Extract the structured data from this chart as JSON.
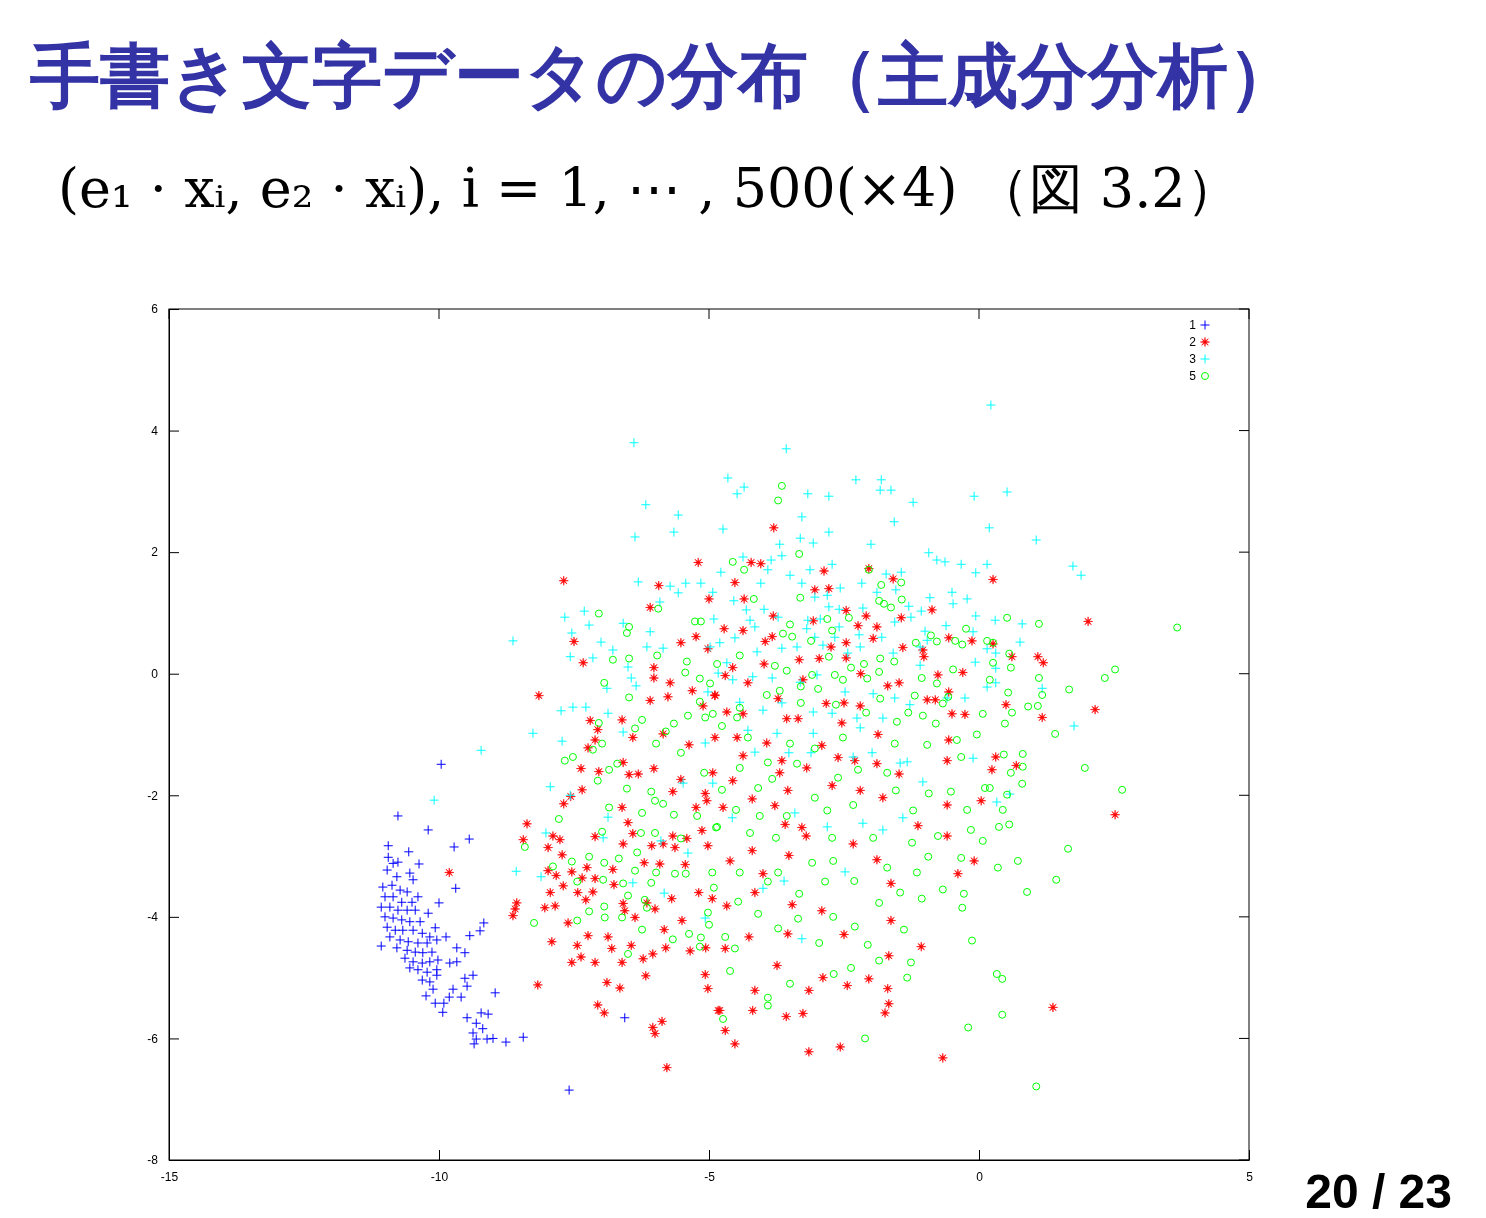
{
  "chart_data": {
    "type": "scatter",
    "title": "手書き文字データの分布（主成分分析）",
    "subtitle": "(e₁ · xᵢ, e₂ · xᵢ),  i = 1, ⋯ , 500(×4)  （図 3.2）",
    "annotations": [
      "20 / 23"
    ],
    "xlim": [
      -15,
      5
    ],
    "ylim": [
      -8,
      6
    ],
    "xticks": [
      -15,
      -10,
      -5,
      0,
      5
    ],
    "yticks": [
      -8,
      -6,
      -4,
      -2,
      0,
      2,
      4,
      6
    ],
    "legend": "top right",
    "series": [
      {
        "name": "1",
        "color": "#0000ff",
        "marker": "cross",
        "x": [
          -9.96,
          -10.76,
          -10.2,
          -9.44,
          -9.72,
          -10.94,
          -10.56,
          -10.37,
          -10.94,
          -10.85,
          -10.76,
          -10.96,
          -10.78,
          -10.54,
          -10.48,
          -11.04,
          -10.87,
          -10.72,
          -10.59,
          -11,
          -10.85,
          -10.69,
          -10.5,
          -10.39,
          -11.07,
          -10.91,
          -10.76,
          -10.59,
          -10.44,
          -11,
          -10.85,
          -10.69,
          -10.54,
          -10.35,
          -10.96,
          -10.81,
          -10.67,
          -10.48,
          -10.31,
          -10.17,
          -10.91,
          -10.72,
          -10.57,
          -10.39,
          -10.22,
          -10.04,
          -10.78,
          -10.59,
          -10.44,
          -10.3,
          -10.13,
          -10.63,
          -10.48,
          -10.31,
          -10.17,
          -10.02,
          -10.54,
          -10.39,
          -10.22,
          -10.04,
          -10.31,
          -10.17,
          -10.04,
          -9.8,
          -9.67,
          -9.69,
          -10,
          -10.2,
          -9.17,
          -9.24,
          -9.43,
          -9.87,
          -11.07,
          -9.67,
          -9.52,
          -10.07,
          -9.37,
          -9.52,
          -9.48,
          -8.96,
          -9.74,
          -9.59,
          -9.81,
          -9.91,
          -10.07,
          -10.24,
          -10.11,
          -9.93,
          -9.48,
          -9.31,
          -9.22,
          -9.09,
          -9.19,
          -9.37,
          -9.31,
          -9.35,
          -9.11,
          -9,
          -8.76,
          -8.44,
          -7.59,
          -6.56
        ],
        "values": [
          -1.49,
          -2.34,
          -2.57,
          -2.72,
          -2.85,
          -2.83,
          -2.93,
          -3.13,
          -3.02,
          -3.12,
          -3.1,
          -3.23,
          -3.34,
          -3.28,
          -3.39,
          -3.51,
          -3.48,
          -3.56,
          -3.59,
          -3.67,
          -3.67,
          -3.76,
          -3.76,
          -3.67,
          -3.84,
          -3.84,
          -3.89,
          -3.89,
          -3.89,
          -4,
          -4.02,
          -4.05,
          -4.08,
          -4.08,
          -4.17,
          -4.22,
          -4.22,
          -4.22,
          -4.27,
          -4.33,
          -4.33,
          -4.38,
          -4.41,
          -4.43,
          -4.43,
          -4.38,
          -4.51,
          -4.55,
          -4.58,
          -4.59,
          -4.58,
          -4.68,
          -4.74,
          -4.76,
          -4.74,
          -4.71,
          -4.84,
          -4.87,
          -4.91,
          -4.87,
          -5.04,
          -5.07,
          -4.96,
          -4.76,
          -4.74,
          -3.53,
          -3.77,
          -3.94,
          -4.1,
          -4.23,
          -4.31,
          -4.33,
          -4.48,
          -4.51,
          -4.59,
          -4.18,
          -4.96,
          -5.01,
          -5.14,
          -5.25,
          -5.19,
          -5.32,
          -5.32,
          -5.42,
          -5.42,
          -5.3,
          -5.19,
          -5.57,
          -5.66,
          -5.75,
          -5.58,
          -5.6,
          -5.84,
          -5.91,
          -6.01,
          -6.09,
          -6.01,
          -6,
          -6.06,
          -5.98,
          -6.85,
          -5.66
        ]
      },
      {
        "name": "2",
        "color": "#ff0000",
        "marker": "star",
        "x": [
          -5.2,
          -7.69,
          -5.93,
          -5,
          -6.09,
          -5.24,
          -7.5,
          -5.52,
          -5.02,
          -7.33,
          -6.02,
          -6.02,
          -5.72,
          -5.31,
          -4.89,
          -5.76,
          -6.09,
          -8.15,
          -5.11,
          -7.2,
          -6.61,
          -7.06,
          -6.41,
          -5.85,
          -7.11,
          -7.24,
          -5.37,
          -4.89,
          -6.59,
          -7.37,
          -7.04,
          -6.48,
          -6.31,
          -6.02,
          -7.35,
          -7.56,
          -7.69,
          -5.67,
          -5.52,
          -6.61,
          -5.24,
          -5.07,
          -8.37,
          -8.44,
          -7.89,
          -7.76,
          -7.98,
          -7.72,
          -7.11,
          -6.5,
          -6.41,
          -6.59,
          -6.2,
          -6.06,
          -5.85,
          -5.63,
          -5.44,
          -5.67,
          -5.41,
          -5.13,
          -5.02,
          -9.81,
          -7.98,
          -7.54,
          -7.26,
          -6.78,
          -5.91,
          -7.83,
          -7.35,
          -7.11,
          -7.7,
          -7.94,
          -7.43,
          -7.15,
          -6.76,
          -8.56,
          -8.59,
          -8.63,
          -8.04,
          -7.85,
          -7.28,
          -6.59,
          -6.56,
          -6.37,
          -6.15,
          -6,
          -5.69,
          -5.5,
          -5.19,
          -4.94,
          -7.61,
          -7.24,
          -6.87,
          -7.91,
          -7.44,
          -7.37,
          -7.54,
          -7.11,
          -6.8,
          -6.44,
          -6.61,
          -6.22,
          -6.04,
          -6.17,
          -5.8,
          -5.35,
          -5.07,
          -5.02,
          -6.89,
          -6.65,
          -8.17,
          -7.06,
          -6.94,
          -5.87,
          -6.04,
          -6,
          -5.78,
          -4.83,
          -5.83,
          -5.06,
          -3.8,
          -4.22,
          -4.04,
          -4.52,
          -4.35,
          -3.81,
          -2.87,
          -3.04,
          -2.78,
          -2.04,
          -1.59,
          0.26,
          -2.46,
          -2.09,
          -1.44,
          -0.87,
          -2.24,
          -1.89,
          -1.96,
          -4.72,
          -4.37,
          -3.83,
          -3.96,
          -3.07,
          -2.46,
          -2.74,
          -1.41,
          -1.04,
          -1.02,
          -0.56,
          -0.13,
          0.26,
          -3.33,
          -2.96,
          -2.46,
          -2.19,
          -1.48,
          -0.76,
          -0.3,
          -0.56,
          -0.96,
          -0.81,
          -0.5,
          -0.26,
          -1.69,
          -2.2,
          -2.5,
          -2.83,
          -2.54,
          -3.26,
          -3.98,
          -4.28,
          -4.56,
          -4.7,
          -4.89,
          -4.67,
          -4.37,
          -3.72,
          -3.56,
          -3.35,
          2.02,
          0.61,
          1.09,
          1.19,
          0.5,
          1.17,
          2.15,
          0.31,
          0.69,
          0.24,
          2.52,
          1.37,
          -4.48,
          -3.93,
          -3.65,
          -3.69,
          -3.54,
          -4.37,
          -4.56,
          -4.93,
          -5.04,
          -4.74,
          -4.2,
          -3.78,
          -3.28,
          -3.2,
          -3.59,
          -3.19,
          -2.91,
          -2.61,
          -2.3,
          -1.87,
          -1.89,
          -2.72,
          -2.2,
          -1.78,
          -1.48,
          -0.59,
          -0.56,
          0.04,
          -0.59,
          -1.13,
          -2.33,
          -0.59,
          -0.09,
          -1.89,
          -3.52,
          -4.2,
          -4.61,
          -4,
          -4.15,
          -4.67,
          -3.46,
          -2.91,
          -1.63,
          -0.39,
          -1.63,
          -2.5,
          -3.54,
          -4.26,
          -4.7,
          -1.07,
          -1.67,
          -3.74,
          -4.15,
          -3.15,
          -2.89,
          -2.44,
          -2.04,
          -1.69,
          -1.67,
          -1.74,
          -4.8,
          -4.19,
          -3.57,
          -3.26,
          -4.7,
          -4.52,
          -3.15,
          -2.57,
          -0.67
        ],
        "values": [
          1.83,
          1.53,
          1.45,
          1.23,
          1.09,
          0.61,
          0.53,
          0.51,
          0.41,
          0.18,
          0.1,
          -0.07,
          -0.15,
          -0.28,
          -0.36,
          -0.38,
          -0.44,
          -0.36,
          -0.53,
          -0.77,
          -0.76,
          -0.92,
          -1.05,
          -0.99,
          -1.09,
          -1.22,
          -1.17,
          -1.05,
          -1.46,
          -1.56,
          -1.61,
          -1.66,
          -1.65,
          -1.56,
          -1.91,
          -2.02,
          -2.14,
          -1.94,
          -1.74,
          -2.2,
          -2.2,
          -1.97,
          -2.47,
          -2.73,
          -2.67,
          -2.73,
          -2.86,
          -2.98,
          -2.68,
          -2.45,
          -2.63,
          -2.8,
          -3.11,
          -2.83,
          -2.8,
          -2.86,
          -3.14,
          -2.67,
          -2.71,
          -2.58,
          -2.83,
          -3.27,
          -3.24,
          -3.26,
          -3.19,
          -3.22,
          -3.13,
          -3.32,
          -3.36,
          -3.37,
          -3.49,
          -3.6,
          -3.6,
          -3.59,
          -3.47,
          -3.77,
          -3.87,
          -3.98,
          -3.85,
          -3.82,
          -3.72,
          -3.78,
          -3.9,
          -4.01,
          -3.77,
          -3.87,
          -3.7,
          -4.06,
          -3.6,
          -3.7,
          -4.1,
          -4.31,
          -4.33,
          -4.41,
          -4.47,
          -4.66,
          -4.75,
          -4.75,
          -4.52,
          -4.47,
          -4.75,
          -4.69,
          -4.61,
          -4.97,
          -4.51,
          -4.56,
          -4.95,
          -5.18,
          -5.08,
          -5.17,
          -5.12,
          -5.45,
          -5.58,
          -5.72,
          -5.82,
          -5.92,
          -6.48,
          -5.54,
          -4.21,
          -4.51,
          2.4,
          1.83,
          1.81,
          1.5,
          1.23,
          0.95,
          1.69,
          1.38,
          1.4,
          1.73,
          1.56,
          1.55,
          1.04,
          0.95,
          0.92,
          1.05,
          0.79,
          0.77,
          0.58,
          0.74,
          0.71,
          0.61,
          0.53,
          0.87,
          0.51,
          0.44,
          0.43,
          0.39,
          0.28,
          0.59,
          0.54,
          0.49,
          0.23,
          0.25,
          0.26,
          0,
          -0.15,
          -0.02,
          0.02,
          -0.3,
          -0.43,
          -0.43,
          -0.66,
          -0.67,
          -0.2,
          -0.53,
          -0.48,
          -0.49,
          -0.81,
          -0.1,
          0.16,
          -0.15,
          0.1,
          -0.03,
          -0.35,
          -0.63,
          -0.66,
          -0.41,
          -0.74,
          -0.74,
          0.86,
          0.28,
          0.28,
          0.18,
          -0.51,
          -0.72,
          -0.59,
          -1.37,
          -1.51,
          -1.58,
          -2.32,
          -5.49,
          -1.05,
          -1.14,
          -1.43,
          -1.63,
          -1.92,
          -1.35,
          -1.76,
          -1.63,
          -2.09,
          -2.2,
          -2.06,
          -2.17,
          -2.53,
          -2.67,
          -2.48,
          -1.55,
          -1.18,
          -1.38,
          -1.43,
          -1,
          -1.48,
          -1.84,
          -1.92,
          -2.04,
          -1.65,
          -1.43,
          -1.09,
          -2.09,
          -2.16,
          -2.5,
          -2.8,
          -2.67,
          -3.08,
          -3.06,
          -2.99,
          -2.91,
          -3.08,
          -3.29,
          -3.6,
          -3.82,
          -3.8,
          -3.9,
          -3.45,
          -3.29,
          -4.06,
          -4.29,
          -4.28,
          -4.33,
          -4.52,
          -4.49,
          -4.64,
          -4.8,
          -5.21,
          -5.21,
          -5,
          -5.13,
          -5.02,
          -5.18,
          -5.43,
          -5.58,
          -5.54,
          -5.54,
          -5.64,
          -5.59,
          -5.87,
          -6.09,
          -6.22,
          -6.14,
          -6.32
        ]
      },
      {
        "name": "3",
        "color": "#00ffff",
        "marker": "cross",
        "x": [
          -6.39,
          -6.17,
          -5.57,
          -5.65,
          -6.37,
          -6.31,
          -5.72,
          -5.43,
          -5.15,
          -5.57,
          -5.91,
          -7.67,
          -7.31,
          -7.22,
          -7.54,
          -6.59,
          -6.09,
          -7,
          -8.63,
          -7.57,
          -7.15,
          -6.78,
          -6.15,
          -5.85,
          -6.5,
          -6.44,
          -6.89,
          -6.35,
          -7.74,
          -7.52,
          -7.28,
          -6.87,
          -8.26,
          -7.72,
          -6.59,
          -9.22,
          -10.09,
          -7.94,
          -7.57,
          -6.87,
          -8.02,
          -6.96,
          -8.57,
          -8.11,
          -5.89,
          -5.48,
          -5.39,
          -5.83,
          -5.07,
          -6.41,
          0.22,
          -3.57,
          -4.65,
          -4.35,
          -4.48,
          -2.28,
          -1.81,
          -1.83,
          -1.63,
          -3.17,
          -2.78,
          -1.22,
          -0.09,
          -3.28,
          -4.74,
          -1.57,
          -2.78,
          0.19,
          -3.31,
          -3.69,
          -3.07,
          -2,
          -0.93,
          -3.65,
          -4.37,
          -3.85,
          -0.78,
          -0.63,
          -0.33,
          0.15,
          -4.78,
          -3.91,
          -3.5,
          -3.13,
          -2.72,
          -2.17,
          -1.72,
          -1.44,
          -0.06,
          -4.04,
          -3.28,
          -2.57,
          -1.89,
          -1.54,
          -4.93,
          -0.5,
          -4.54,
          -3.04,
          -2.81,
          -0.91,
          -0.22,
          -0.48,
          -4.31,
          -3.98,
          -2.78,
          -2.59,
          -2.15,
          -1.3,
          -1.07,
          -1.26,
          -0.06,
          0.3,
          -4.91,
          -4.24,
          -3.72,
          -3.17,
          -2.94,
          -2.59,
          -1.56,
          -0.61,
          -1,
          -0.11,
          -4.52,
          -4.15,
          -3.19,
          -3.04,
          -2.67,
          -2.22,
          -1.8,
          -0.96,
          0.15,
          -4.8,
          -3.65,
          -2.89,
          -3.37,
          -2.2,
          -1.59,
          -1.09,
          -0.07,
          0.31,
          -4.98,
          -4.11,
          -2.43,
          0.52,
          1.06,
          1.74,
          1.89,
          0.8,
          0.76,
          0.31,
          0.31,
          1.17,
          1.76,
          0.57,
          0.33,
          -5.07,
          -4.15,
          -3.52,
          -3.11,
          -0.11,
          -1.04,
          -1.41,
          -2.15,
          -1.78,
          -2.81,
          -2.48,
          -3.61,
          -4,
          -3.28,
          -4.28,
          -3.74,
          -3.07,
          -2.2,
          -4.93,
          -4.57,
          -3.41,
          -2.33,
          -1.98,
          -1.46,
          -1.33,
          -4.67,
          -4.83,
          -4.56,
          -4.19,
          -3.83,
          -3.31,
          -3,
          -2.48,
          -1.96,
          -1.56,
          -5.02,
          -4.43,
          -4,
          -3.65,
          -3.07,
          -2.72,
          -2.26,
          -1.78,
          -1.28,
          -0.59,
          -0.26,
          0.15,
          -1.09
        ],
        "values": [
          3.8,
          2.78,
          2.61,
          2.33,
          2.25,
          1.51,
          1.44,
          1.49,
          1.49,
          1.33,
          1.18,
          0.93,
          1.03,
          0.8,
          0.67,
          0.83,
          0.69,
          0.52,
          0.54,
          0.28,
          0.26,
          0.39,
          0.44,
          0.42,
          0.11,
          -0.07,
          -0.24,
          -0.2,
          -0.61,
          -0.55,
          -0.55,
          -0.65,
          -0.98,
          -1.11,
          -0.96,
          -1.26,
          -2.08,
          -1.86,
          -2,
          -2.36,
          -2.62,
          -2.7,
          -3.25,
          -3.34,
          -2.75,
          -1.8,
          -2.95,
          -3.61,
          -4.02,
          -3.44,
          4.42,
          3.7,
          3.22,
          3.07,
          2.96,
          3.19,
          3.19,
          3.02,
          3.02,
          2.96,
          2.92,
          2.82,
          2.92,
          2.58,
          2.38,
          2.5,
          2.33,
          2.4,
          2.23,
          2.13,
          2.15,
          2.13,
          1.99,
          1.94,
          1.92,
          1.87,
          1.87,
          1.84,
          1.8,
          1.8,
          1.67,
          1.71,
          1.62,
          1.71,
          1.8,
          1.49,
          1.64,
          1.67,
          1.66,
          1.49,
          1.49,
          1.41,
          1.34,
          1.38,
          1.34,
          1.34,
          1.2,
          1.26,
          1.29,
          1.25,
          1.23,
          1.15,
          1.05,
          1.06,
          1.1,
          1.06,
          1.08,
          1.11,
          1.03,
          0.93,
          0.95,
          0.88,
          0.9,
          0.88,
          0.93,
          0.88,
          0.9,
          0.77,
          0.85,
          0.79,
          0.7,
          0.69,
          0.59,
          0.77,
          0.74,
          0.6,
          0.6,
          0.64,
          0.6,
          0.55,
          0.41,
          0.51,
          0.42,
          0.47,
          0.44,
          0.44,
          0.34,
          0.44,
          0.19,
          0.34,
          0.44,
          0.36,
          0.34,
          2.99,
          2.2,
          1.77,
          1.62,
          0.82,
          0.52,
          0.09,
          -0.15,
          -0.24,
          -0.86,
          -1.98,
          -2.11,
          -1.14,
          -1.29,
          -1.3,
          -1.3,
          -1.39,
          -1.78,
          -2.37,
          -2.46,
          -2.57,
          -2.52,
          -3.26,
          -3.41,
          -3.53,
          -4.36,
          -0.93,
          -0.98,
          -0.98,
          -0.89,
          -1.8,
          -2.37,
          -2.29,
          -1.37,
          -1.3,
          -1.47,
          -1.45,
          0.18,
          0.01,
          -0.1,
          -0.05,
          -0.07,
          -0.14,
          -0.02,
          -0.3,
          -0.33,
          -0.4,
          -0.3,
          -0.47,
          -0.6,
          -0.48,
          -0.63,
          -0.65,
          -0.73,
          -0.73,
          -0.51,
          -0.4,
          -0.4,
          -0.22,
          0.14
        ]
      },
      {
        "name": "5",
        "color": "#00ff00",
        "marker": "circle",
        "x": [
          -7.04,
          -5.94,
          -6.48,
          -6.52,
          -5.26,
          -5.15,
          -6.78,
          -6.48,
          -5.96,
          -5.41,
          -5.44,
          -5.17,
          -4.98,
          -6.94,
          -6.48,
          -5.17,
          -5.07,
          -4.93,
          -5.39,
          -6.24,
          -6.37,
          -5.98,
          -5.65,
          -5.8,
          -5.52,
          -7.04,
          -6.98,
          -7.15,
          -7.67,
          -7.52,
          -6.7,
          -6.85,
          -7.06,
          -6.52,
          -6.07,
          -6,
          -5.85,
          -6.85,
          -6.24,
          -7.78,
          -6.98,
          -6.26,
          -6,
          -5.52,
          -5.65,
          -5.22,
          -4.87,
          -8.41,
          -7.89,
          -7.54,
          -7.22,
          -6.94,
          -6.67,
          -6.37,
          -6.33,
          -5.98,
          -5.63,
          -5.43,
          -4.94,
          -4.91,
          -7.44,
          -6.96,
          -6.59,
          -6.07,
          -6.5,
          -6.19,
          -6.15,
          -6.94,
          -6.93,
          -7.22,
          -6.61,
          -8.24,
          -7.44,
          -6.24,
          -5.67,
          -5.37,
          -5.15,
          -5.17,
          -5.02,
          -5,
          -6.5,
          -3.65,
          -3.72,
          -3.33,
          -4.56,
          -4.35,
          -2.04,
          -1.81,
          -1.44,
          -4.17,
          -3.31,
          -1.85,
          -1.76,
          -1.63,
          -1.43,
          -3.5,
          -3.63,
          -3.46,
          -2.81,
          -2.41,
          -2.72,
          -3.11,
          -0.24,
          -0.89,
          -0.78,
          -0.44,
          -0.31,
          0.15,
          -1.17,
          -4.43,
          -4.85,
          -3.78,
          -3.56,
          -2.78,
          -3.09,
          -2.67,
          -2.37,
          -2.13,
          -1.83,
          -1.57,
          -1.85,
          -2.07,
          -2.52,
          -3.3,
          -0.48,
          -1.06,
          -0.78,
          0.2,
          0.26,
          0.07,
          -0.57,
          -0.67,
          -1.19,
          -1.04,
          -1.31,
          -1.52,
          -0.8,
          -1.83,
          -2.09,
          -2.65,
          -2.98,
          -3.3,
          -3.69,
          -3.93,
          -4.43,
          -4.48,
          -4.76,
          0.52,
          1.11,
          3.67,
          0.26,
          0.56,
          0.59,
          1.11,
          2.33,
          2.52,
          0.54,
          1.17,
          1.67,
          0.91,
          1.09,
          0.61,
          0.48,
          1.41,
          0.46,
          0.81,
          0.81,
          0.59,
          1.96,
          0.2,
          0.8,
          0.52,
          2.65,
          0.44,
          0.37,
          0.56,
          1.65,
          0.72,
          0.35,
          1.43,
          0.89,
          0.33,
          0.43,
          0.43,
          1.06,
          -4.28,
          -3.5,
          -3.04,
          -2.52,
          -1.56,
          -0.96,
          -0.41,
          -0.04,
          -0.33,
          -4.43,
          -3.91,
          -3.37,
          -2.24,
          -1.7,
          -2.61,
          -5.09,
          -4.76,
          -4.09,
          -3.83,
          -3.04,
          -2.33,
          -1.54,
          -0.93,
          -0.52,
          0.11,
          -0.22,
          -1.22,
          -2.81,
          -3.56,
          -4.06,
          -4.5,
          -4.85,
          -4.24,
          -3.76,
          -2.72,
          -1.96,
          -1.24,
          -0.76,
          -0.15,
          0.07,
          -4.43,
          -3.72,
          -3.09,
          -2.7,
          -1.7,
          -1.15,
          -0.94,
          -0.33,
          -3.91,
          -3.33,
          -2.85,
          -2.31,
          -1.85,
          -1.46,
          -1.06,
          -0.67,
          -0.28,
          -0.31,
          -4.46,
          -4.09,
          -3.35,
          -2.7,
          -2.3,
          -2.06,
          -1.85,
          -1.26,
          -1.33,
          -2.37,
          -2.69,
          -3.5,
          -3.72,
          -2.96,
          -4.7,
          -4.52,
          -4.61,
          -3.91,
          -3.91,
          -4.74,
          -2.11,
          -0.2,
          -0.13,
          -1.39
        ],
        "values": [
          0.99,
          1.07,
          0.77,
          0.67,
          0.86,
          0.86,
          0.23,
          0.25,
          0.3,
          0.2,
          0.02,
          -0.08,
          -0.16,
          -0.15,
          -0.39,
          -0.46,
          -0.72,
          -0.66,
          -0.69,
          -0.76,
          -0.9,
          -1.15,
          -0.82,
          -0.95,
          -1.3,
          -0.81,
          -1.15,
          -1.25,
          -1.43,
          -1.37,
          -1.48,
          -1.58,
          -1.76,
          -1.89,
          -1.94,
          -2.09,
          -2.14,
          -2.2,
          -2.29,
          -2.39,
          -2.6,
          -2.62,
          -2.62,
          -2.71,
          -2.32,
          -2.34,
          -2.53,
          -2.85,
          -3.17,
          -3.09,
          -3.01,
          -3.11,
          -3.04,
          -3.24,
          -2.94,
          -3.27,
          -3.29,
          -3.29,
          -3.27,
          -3.52,
          -3.42,
          -3.39,
          -3.45,
          -3.44,
          -3.65,
          -3.72,
          -3.85,
          -3.83,
          -4.01,
          -3.91,
          -4.01,
          -4.1,
          -4.06,
          -4.21,
          -4.37,
          -4.28,
          -4.34,
          -4.49,
          -3.93,
          -4.13,
          -4.61,
          3.09,
          2.85,
          1.97,
          1.84,
          1.71,
          1.71,
          1.46,
          1.5,
          1.23,
          1.25,
          1.2,
          1.15,
          1.09,
          1.22,
          0.81,
          0.66,
          0.61,
          0.9,
          0.92,
          0.71,
          0.54,
          0.74,
          0.63,
          0.53,
          0.54,
          0.48,
          0.54,
          0.51,
          0.3,
          0.16,
          0.13,
          0.05,
          0.28,
          -0.02,
          -0.02,
          0.1,
          0.16,
          0.25,
          0.2,
          0.03,
          -0.08,
          -0.1,
          -0.21,
          0.07,
          -0.07,
          -0.16,
          -0.1,
          0.18,
          -0.66,
          -0.38,
          -0.49,
          -0.36,
          -0.69,
          -0.64,
          -0.79,
          -0.82,
          -0.41,
          -0.64,
          -0.51,
          -0.25,
          -0.48,
          -0.28,
          -0.35,
          -0.56,
          -0.72,
          -0.86,
          0.92,
          0.82,
          0.76,
          0.51,
          0.33,
          0.1,
          -0.07,
          -0.07,
          0.07,
          -0.31,
          -0.35,
          -0.26,
          -0.54,
          -0.53,
          -0.64,
          -0.82,
          -0.99,
          -1.33,
          -1.32,
          -1.53,
          -1.63,
          -1.55,
          -1.88,
          -1.81,
          -1.99,
          -1.91,
          -2.24,
          -2.52,
          -2.48,
          -2.88,
          -3.08,
          -3.19,
          -3.39,
          -3.59,
          -4.94,
          -5.02,
          -5.61,
          -6.79,
          -1.05,
          -1.15,
          -1.23,
          -1.05,
          -1.15,
          -1.17,
          -1.09,
          -1,
          -1.37,
          -1.55,
          -1.46,
          -1.48,
          -1.58,
          -1.63,
          -1.71,
          -1.63,
          -1.91,
          -1.88,
          -1.73,
          -2.04,
          -2.16,
          -1.92,
          -1.97,
          -1.94,
          -1.88,
          -2.24,
          -2.25,
          -2.25,
          -2.34,
          -2.34,
          -2.24,
          -2.52,
          -2.62,
          -2.7,
          -2.7,
          -2.7,
          -2.78,
          -2.67,
          -2.57,
          -2.75,
          -3.27,
          -3.27,
          -3.11,
          -3.08,
          -3.19,
          -3.27,
          -3.01,
          -3.03,
          -3.42,
          -3.62,
          -3.42,
          -3.41,
          -3.77,
          -3.6,
          -3.7,
          -3.55,
          -3.62,
          -3.85,
          -3.75,
          -3.95,
          -4.03,
          -4,
          -4.16,
          -4.46,
          -4.72,
          -4.75,
          -5,
          -4.84,
          -4.94,
          -5.1,
          -4.19,
          -4.43,
          -4.33,
          -4.52,
          -4.89,
          -5.33,
          -5.46,
          -5.68,
          -6,
          -5.82,
          -4.39,
          -4.21
        ]
      }
    ]
  }
}
